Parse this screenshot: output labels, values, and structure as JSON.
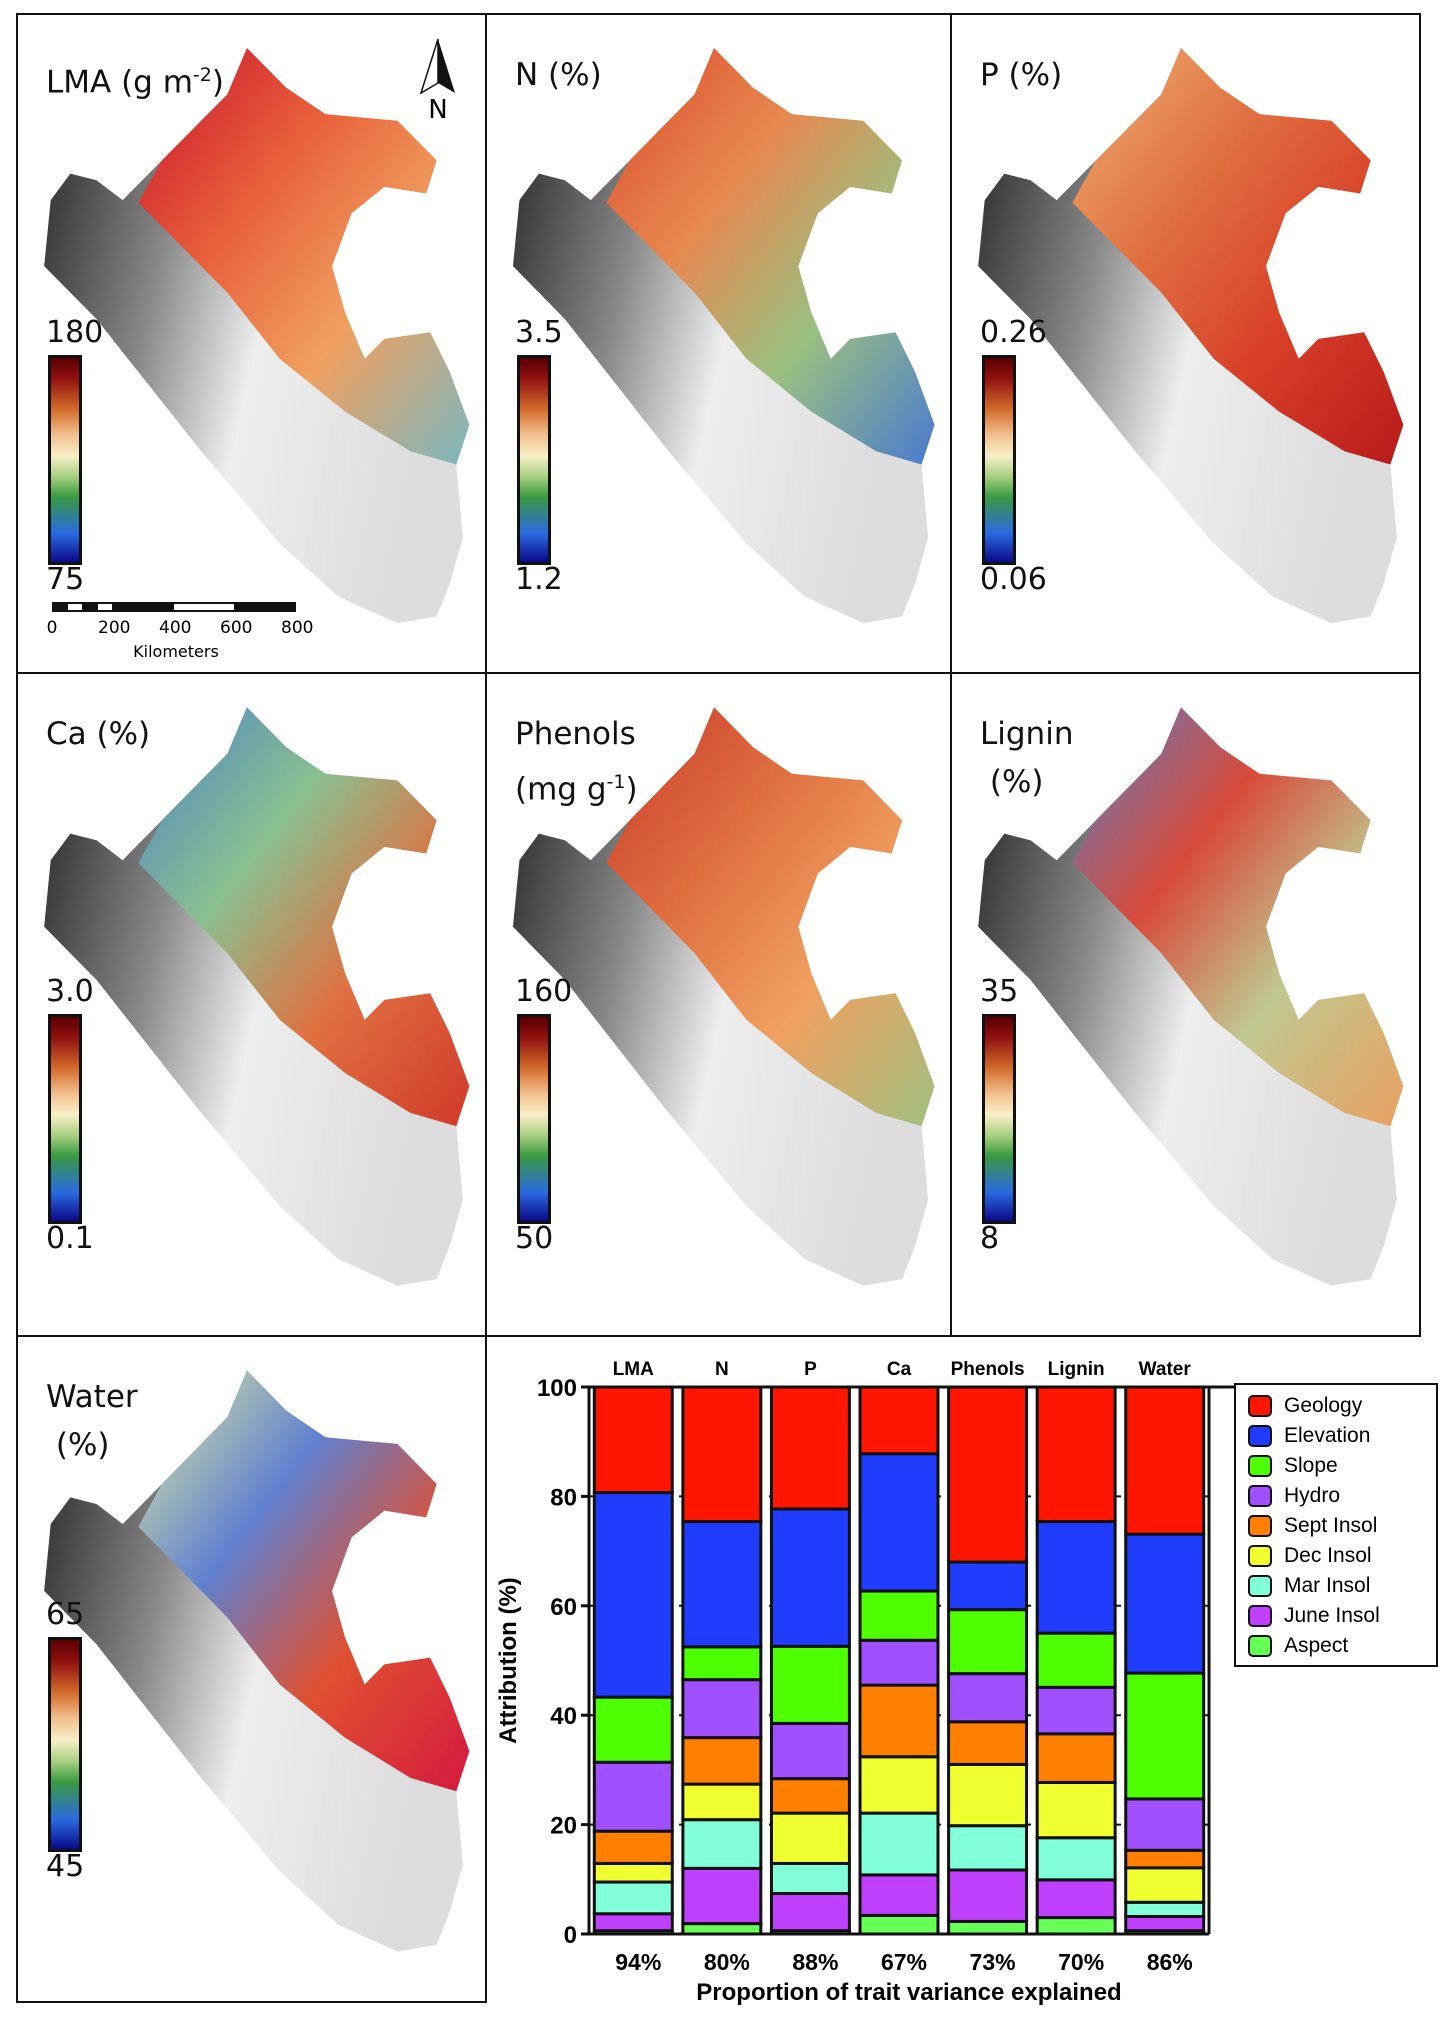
{
  "panels": [
    {
      "title": "LMA (g m",
      "title_sup": "-2",
      "title_end": ")",
      "max": "180",
      "min": "75",
      "colors": [
        "#c8102e",
        "#e8603a",
        "#f0a060",
        "#7ab8c0"
      ]
    },
    {
      "title": "N (%)",
      "max": "3.5",
      "min": "1.2",
      "colors": [
        "#d84a2a",
        "#e88850",
        "#9ac080",
        "#4a7ad0"
      ]
    },
    {
      "title": "P (%)",
      "max": "0.26",
      "min": "0.06",
      "colors": [
        "#f0b070",
        "#e07040",
        "#d84028",
        "#b81a1a"
      ]
    },
    {
      "title": "Ca (%)",
      "max": "3.0",
      "min": "0.1",
      "colors": [
        "#4a80c8",
        "#8ac090",
        "#e07040",
        "#d03a2a"
      ]
    },
    {
      "title": "Phenols\n(mg g",
      "title_sup": "-1",
      "title_end": ")",
      "max": "160",
      "min": "50",
      "colors": [
        "#c83a2a",
        "#e07040",
        "#f0a060",
        "#a0c080"
      ]
    },
    {
      "title": "Lignin\n (%)",
      "max": "35",
      "min": "8",
      "colors": [
        "#5a80c8",
        "#d84a3a",
        "#c0c890",
        "#e8a060"
      ]
    },
    {
      "title": "Water\n (%)",
      "max": "65",
      "min": "45",
      "colors": [
        "#e0f0a0",
        "#6080d0",
        "#e05030",
        "#d41a40"
      ]
    }
  ],
  "north_label": "N",
  "scalebar": {
    "ticks": [
      "0",
      "200",
      "400",
      "600",
      "800"
    ],
    "unit": "Kilometers"
  },
  "chart_data": {
    "type": "bar",
    "stacked": true,
    "categories": [
      "LMA",
      "N",
      "P",
      "Ca",
      "Phenols",
      "Lignin",
      "Water"
    ],
    "variance_explained": [
      "94%",
      "80%",
      "88%",
      "67%",
      "73%",
      "70%",
      "86%"
    ],
    "xlabel": "Proportion of trait variance explained",
    "ylabel": "Attribution (%)",
    "ylim": [
      0,
      100
    ],
    "yticks": [
      "0",
      "20",
      "40",
      "60",
      "80",
      "100"
    ],
    "legend_position": "right",
    "series": [
      {
        "name": "Aspect",
        "color": "#66ff55",
        "values": [
          0.6,
          1.9,
          0.6,
          3.4,
          2.3,
          3.0,
          0.6
        ]
      },
      {
        "name": "June Insol",
        "color": "#c040ff",
        "values": [
          3.1,
          10.1,
          6.8,
          7.4,
          9.4,
          6.9,
          2.6
        ]
      },
      {
        "name": "Mar Insol",
        "color": "#80ffd8",
        "values": [
          5.8,
          8.9,
          5.5,
          11.3,
          8.1,
          7.7,
          2.6
        ]
      },
      {
        "name": "Dec Insol",
        "color": "#f0ff30",
        "values": [
          3.4,
          6.5,
          9.2,
          10.3,
          11.2,
          10.1,
          6.3
        ]
      },
      {
        "name": "Sept Insol",
        "color": "#ff8000",
        "values": [
          5.9,
          8.5,
          6.3,
          13.1,
          7.8,
          8.9,
          3.2
        ]
      },
      {
        "name": "Hydro",
        "color": "#a050ff",
        "values": [
          12.6,
          10.6,
          10.1,
          8.2,
          8.8,
          8.5,
          9.4
        ]
      },
      {
        "name": "Slope",
        "color": "#4dff00",
        "values": [
          11.9,
          6.0,
          14.1,
          9.0,
          11.7,
          9.9,
          23.0
        ]
      },
      {
        "name": "Elevation",
        "color": "#1f3cff",
        "values": [
          37.4,
          22.9,
          25.1,
          25.1,
          8.7,
          20.4,
          25.4
        ]
      },
      {
        "name": "Geology",
        "color": "#ff1500",
        "values": [
          19.3,
          24.6,
          22.3,
          12.2,
          32.0,
          24.6,
          26.9
        ]
      }
    ],
    "legend_order": [
      "Geology",
      "Elevation",
      "Slope",
      "Hydro",
      "Sept Insol",
      "Dec Insol",
      "Mar Insol",
      "June Insol",
      "Aspect"
    ]
  }
}
